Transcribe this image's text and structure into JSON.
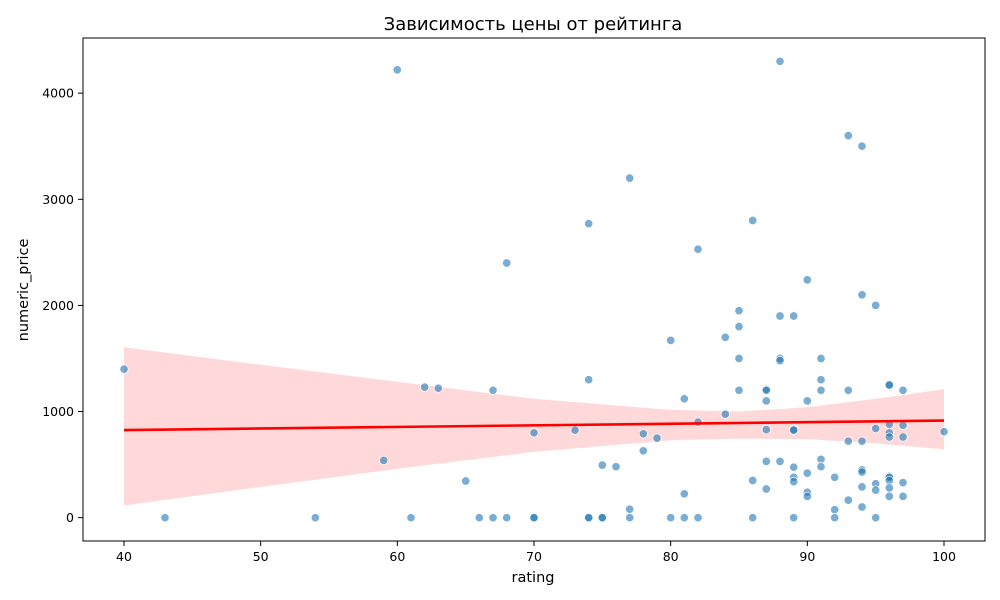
{
  "chart_data": {
    "type": "scatter",
    "title": "Зависимость цены от рейтинга",
    "xlabel": "rating",
    "ylabel": "numeric_price",
    "xlim": [
      37,
      103
    ],
    "ylim": [
      -220,
      4520
    ],
    "xticks": [
      40,
      50,
      60,
      70,
      80,
      90,
      100
    ],
    "yticks": [
      0,
      1000,
      2000,
      3000,
      4000
    ],
    "grid": false,
    "colors": {
      "points": "#1f77b4",
      "regression": "#ff0000"
    },
    "regression": {
      "x": [
        40,
        100
      ],
      "y": [
        825,
        915
      ],
      "ci_x": [
        40,
        50,
        60,
        70,
        80,
        85,
        90,
        95,
        100
      ],
      "ci_lower": [
        115,
        290,
        460,
        620,
        730,
        745,
        740,
        700,
        645
      ],
      "ci_upper": [
        1605,
        1440,
        1280,
        1120,
        1015,
        1000,
        1040,
        1120,
        1210
      ]
    },
    "points": [
      [
        40,
        1400
      ],
      [
        43,
        0
      ],
      [
        54,
        0
      ],
      [
        59,
        540
      ],
      [
        60,
        4220
      ],
      [
        61,
        0
      ],
      [
        62,
        1230
      ],
      [
        63,
        1220
      ],
      [
        65,
        345
      ],
      [
        66,
        0
      ],
      [
        67,
        0
      ],
      [
        67,
        1200
      ],
      [
        68,
        0
      ],
      [
        68,
        2400
      ],
      [
        70,
        800
      ],
      [
        70,
        0
      ],
      [
        70,
        0
      ],
      [
        73,
        825
      ],
      [
        74,
        2770
      ],
      [
        74,
        1300
      ],
      [
        74,
        0
      ],
      [
        74,
        0
      ],
      [
        75,
        0
      ],
      [
        75,
        0
      ],
      [
        75,
        495
      ],
      [
        76,
        480
      ],
      [
        77,
        3200
      ],
      [
        77,
        80
      ],
      [
        77,
        0
      ],
      [
        78,
        790
      ],
      [
        78,
        630
      ],
      [
        79,
        750
      ],
      [
        80,
        1670
      ],
      [
        80,
        0
      ],
      [
        81,
        1120
      ],
      [
        81,
        225
      ],
      [
        81,
        0
      ],
      [
        82,
        2530
      ],
      [
        82,
        900
      ],
      [
        82,
        0
      ],
      [
        84,
        1700
      ],
      [
        84,
        975
      ],
      [
        85,
        1950
      ],
      [
        85,
        1800
      ],
      [
        85,
        1500
      ],
      [
        85,
        1200
      ],
      [
        86,
        2800
      ],
      [
        86,
        350
      ],
      [
        86,
        0
      ],
      [
        87,
        1210
      ],
      [
        87,
        1200
      ],
      [
        87,
        1100
      ],
      [
        87,
        830
      ],
      [
        87,
        530
      ],
      [
        87,
        270
      ],
      [
        88,
        4300
      ],
      [
        88,
        1900
      ],
      [
        88,
        1500
      ],
      [
        88,
        1480
      ],
      [
        88,
        530
      ],
      [
        89,
        1900
      ],
      [
        89,
        830
      ],
      [
        89,
        825
      ],
      [
        89,
        475
      ],
      [
        89,
        380
      ],
      [
        89,
        340
      ],
      [
        89,
        0
      ],
      [
        90,
        2240
      ],
      [
        90,
        1100
      ],
      [
        90,
        420
      ],
      [
        90,
        240
      ],
      [
        90,
        200
      ],
      [
        91,
        1500
      ],
      [
        91,
        1300
      ],
      [
        91,
        1200
      ],
      [
        91,
        550
      ],
      [
        91,
        480
      ],
      [
        92,
        380
      ],
      [
        92,
        75
      ],
      [
        92,
        0
      ],
      [
        93,
        3600
      ],
      [
        93,
        1200
      ],
      [
        93,
        720
      ],
      [
        93,
        165
      ],
      [
        94,
        3500
      ],
      [
        94,
        2100
      ],
      [
        94,
        720
      ],
      [
        94,
        450
      ],
      [
        94,
        430
      ],
      [
        94,
        290
      ],
      [
        94,
        100
      ],
      [
        95,
        2000
      ],
      [
        95,
        840
      ],
      [
        95,
        320
      ],
      [
        95,
        260
      ],
      [
        95,
        0
      ],
      [
        96,
        1250
      ],
      [
        96,
        1250
      ],
      [
        96,
        880
      ],
      [
        96,
        800
      ],
      [
        96,
        760
      ],
      [
        96,
        390
      ],
      [
        96,
        380
      ],
      [
        96,
        350
      ],
      [
        96,
        280
      ],
      [
        96,
        200
      ],
      [
        97,
        1200
      ],
      [
        97,
        870
      ],
      [
        97,
        760
      ],
      [
        97,
        330
      ],
      [
        97,
        200
      ],
      [
        100,
        810
      ]
    ]
  }
}
